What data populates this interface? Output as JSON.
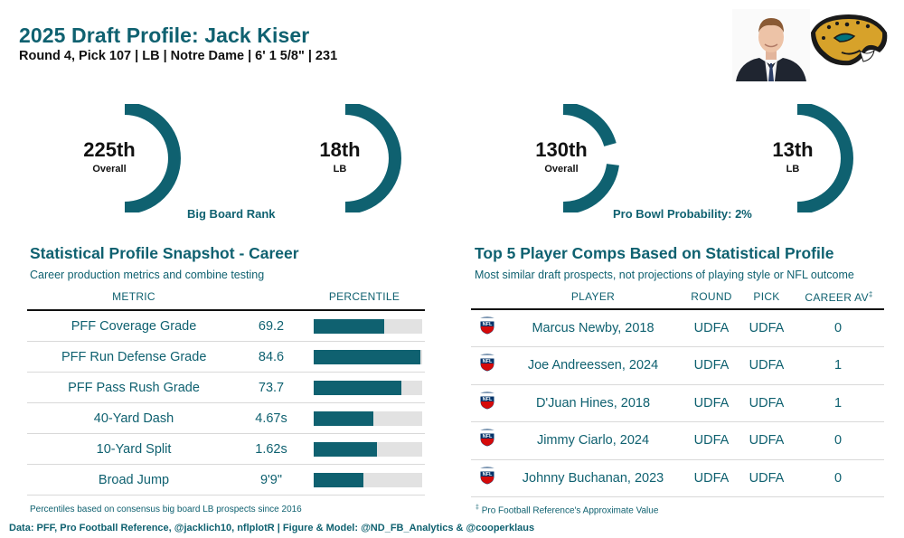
{
  "header": {
    "title": "2025 Draft Profile: Jack Kiser",
    "subtitle": "Round 4, Pick 107 | LB | Notre Dame | 6' 1 5/8\" | 231"
  },
  "colors": {
    "accent": "#0f6170",
    "bar_bg": "#e2e2e2",
    "gauge_arc": "#0f6170"
  },
  "big_board": {
    "caption": "Big Board Rank",
    "overall": {
      "value": "225th",
      "label": "Overall"
    },
    "position": {
      "value": "18th",
      "label": "LB"
    }
  },
  "pro_bowl": {
    "caption": "Pro Bowl Probability: 2%",
    "overall": {
      "value": "130th",
      "label": "Overall"
    },
    "position": {
      "value": "13th",
      "label": "LB"
    }
  },
  "stat_profile": {
    "title": "Statistical Profile Snapshot - Career",
    "subtitle": "Career production metrics and combine testing",
    "col_metric": "METRIC",
    "col_percentile": "PERCENTILE",
    "footnote": "Percentiles based on consensus big board LB prospects since 2016"
  },
  "chart_data": {
    "type": "bar",
    "categories": [
      "PFF Coverage Grade",
      "PFF Run Defense Grade",
      "PFF Pass Rush Grade",
      "40-Yard Dash",
      "10-Yard Split",
      "Broad Jump"
    ],
    "value_labels": [
      "69.2",
      "84.6",
      "73.7",
      "4.67s",
      "1.62s",
      "9'9\""
    ],
    "series": [
      {
        "values": [
          65,
          98,
          81,
          55,
          58,
          46
        ]
      }
    ],
    "ylim": [
      0,
      100
    ],
    "orientation": "horizontal"
  },
  "comps": {
    "title": "Top 5 Player Comps Based on Statistical Profile",
    "subtitle": "Most similar draft prospects, not projections of playing style or NFL outcome",
    "headers": {
      "player": "PLAYER",
      "round": "ROUND",
      "pick": "PICK",
      "career_av": "CAREER AV",
      "career_av_sup": "‡"
    },
    "rows": [
      {
        "player": "Marcus Newby, 2018",
        "round": "UDFA",
        "pick": "UDFA",
        "av": "0"
      },
      {
        "player": "Joe Andreessen, 2024",
        "round": "UDFA",
        "pick": "UDFA",
        "av": "1"
      },
      {
        "player": "D'Juan Hines, 2018",
        "round": "UDFA",
        "pick": "UDFA",
        "av": "1"
      },
      {
        "player": "Jimmy Ciarlo, 2024",
        "round": "UDFA",
        "pick": "UDFA",
        "av": "0"
      },
      {
        "player": "Johnny Buchanan, 2023",
        "round": "UDFA",
        "pick": "UDFA",
        "av": "0"
      }
    ],
    "row_icon": "nfl-shield-icon",
    "footnote_mark": "‡",
    "footnote": "Pro Football Reference's Approximate Value"
  },
  "credits": "Data: PFF, Pro Football Reference, @jacklich10, nflplotR | Figure & Model: @ND_FB_Analytics & @cooperklaus",
  "images": {
    "photo": "player-headshot",
    "logo": "jacksonville-jaguars-logo"
  }
}
